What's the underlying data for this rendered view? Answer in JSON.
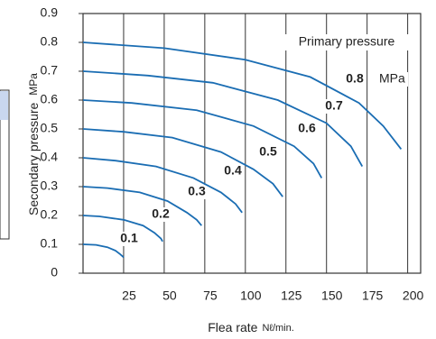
{
  "chart_data": {
    "type": "line",
    "ylabel": "Secondary pressure",
    "yunit": "MPa",
    "xlabel": "Flea rate",
    "xunit": "Nℓ/min.",
    "annotation": "Primary pressure",
    "unit_annotation": "MPa",
    "xlim": [
      0,
      208
    ],
    "xticks": [
      25,
      50,
      75,
      100,
      125,
      150,
      175,
      200
    ],
    "ylim": [
      0,
      0.9
    ],
    "yticks": [
      0,
      0.1,
      0.2,
      0.3,
      0.4,
      0.5,
      0.6,
      0.7,
      0.8,
      0.9
    ],
    "grid": "x",
    "color": "#1a6db3",
    "series": [
      {
        "name": "0.1",
        "x": [
          0,
          8,
          15,
          20,
          23,
          25
        ],
        "values": [
          0.1,
          0.098,
          0.09,
          0.078,
          0.065,
          0.055
        ]
      },
      {
        "name": "0.2",
        "x": [
          0,
          10,
          25,
          37,
          44,
          48,
          49
        ],
        "values": [
          0.2,
          0.197,
          0.185,
          0.165,
          0.14,
          0.12,
          0.11
        ]
      },
      {
        "name": "0.3",
        "x": [
          0,
          15,
          35,
          52,
          64,
          70,
          73
        ],
        "values": [
          0.3,
          0.295,
          0.28,
          0.25,
          0.21,
          0.185,
          0.165
        ]
      },
      {
        "name": "0.4",
        "x": [
          0,
          20,
          45,
          68,
          85,
          94,
          98
        ],
        "values": [
          0.4,
          0.39,
          0.37,
          0.33,
          0.28,
          0.24,
          0.21
        ]
      },
      {
        "name": "0.5",
        "x": [
          0,
          25,
          55,
          85,
          105,
          117,
          123
        ],
        "values": [
          0.5,
          0.49,
          0.47,
          0.42,
          0.36,
          0.31,
          0.265
        ]
      },
      {
        "name": "0.6",
        "x": [
          0,
          30,
          70,
          105,
          130,
          142,
          147
        ],
        "values": [
          0.6,
          0.59,
          0.565,
          0.51,
          0.44,
          0.38,
          0.33
        ]
      },
      {
        "name": "0.7",
        "x": [
          0,
          40,
          80,
          120,
          150,
          165,
          172
        ],
        "values": [
          0.7,
          0.685,
          0.66,
          0.6,
          0.52,
          0.44,
          0.37
        ]
      },
      {
        "name": "0.8",
        "x": [
          0,
          50,
          100,
          140,
          170,
          185,
          196
        ],
        "values": [
          0.8,
          0.78,
          0.74,
          0.68,
          0.59,
          0.51,
          0.43
        ]
      }
    ]
  }
}
